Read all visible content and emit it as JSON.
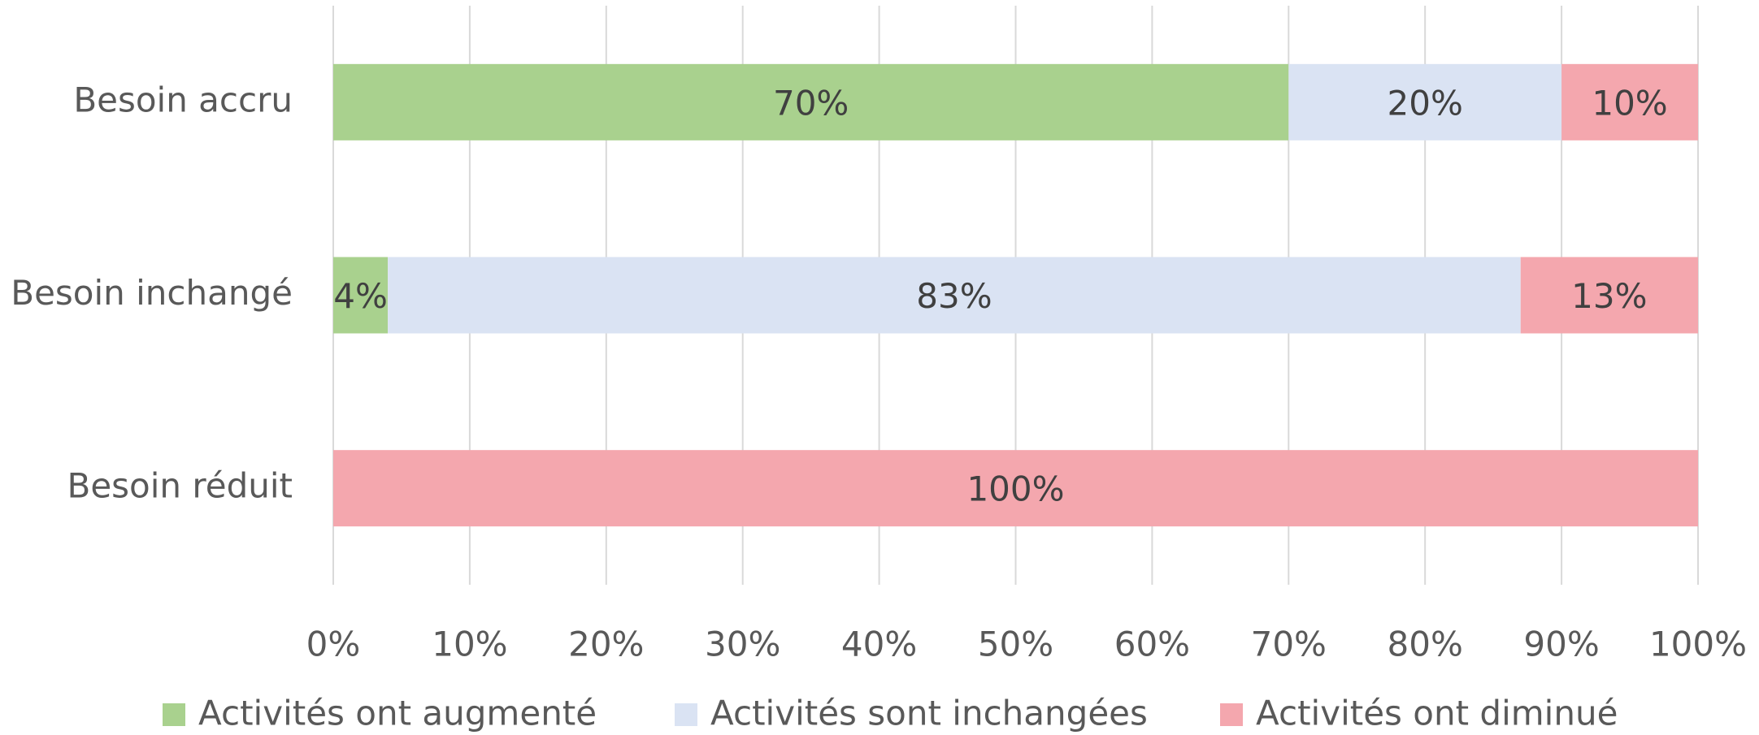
{
  "chart_data": {
    "type": "stacked_bar_horizontal",
    "categories": [
      "Besoin accru",
      "Besoin inchangé",
      "Besoin réduit"
    ],
    "series": [
      {
        "name": "Activités ont augmenté",
        "color": "#a9d18e",
        "values": [
          70,
          4,
          0
        ],
        "value_labels": [
          "70%",
          "4%",
          null
        ]
      },
      {
        "name": "Activités sont inchangées",
        "color": "#dae3f3",
        "values": [
          20,
          83,
          0
        ],
        "value_labels": [
          "20%",
          "83%",
          null
        ]
      },
      {
        "name": "Activités ont diminué",
        "color": "#f4a7ae",
        "values": [
          10,
          13,
          100
        ],
        "value_labels": [
          "10%",
          "13%",
          "100%"
        ]
      }
    ],
    "xlim": [
      0,
      100
    ],
    "xticks": [
      {
        "value": 0,
        "label": "0%"
      },
      {
        "value": 10,
        "label": "10%"
      },
      {
        "value": 20,
        "label": "20%"
      },
      {
        "value": 30,
        "label": "30%"
      },
      {
        "value": 40,
        "label": "40%"
      },
      {
        "value": 50,
        "label": "50%"
      },
      {
        "value": 60,
        "label": "60%"
      },
      {
        "value": 70,
        "label": "70%"
      },
      {
        "value": 80,
        "label": "80%"
      },
      {
        "value": 90,
        "label": "90%"
      },
      {
        "value": 100,
        "label": "100%"
      }
    ],
    "grid": true,
    "legend": "bottom"
  }
}
